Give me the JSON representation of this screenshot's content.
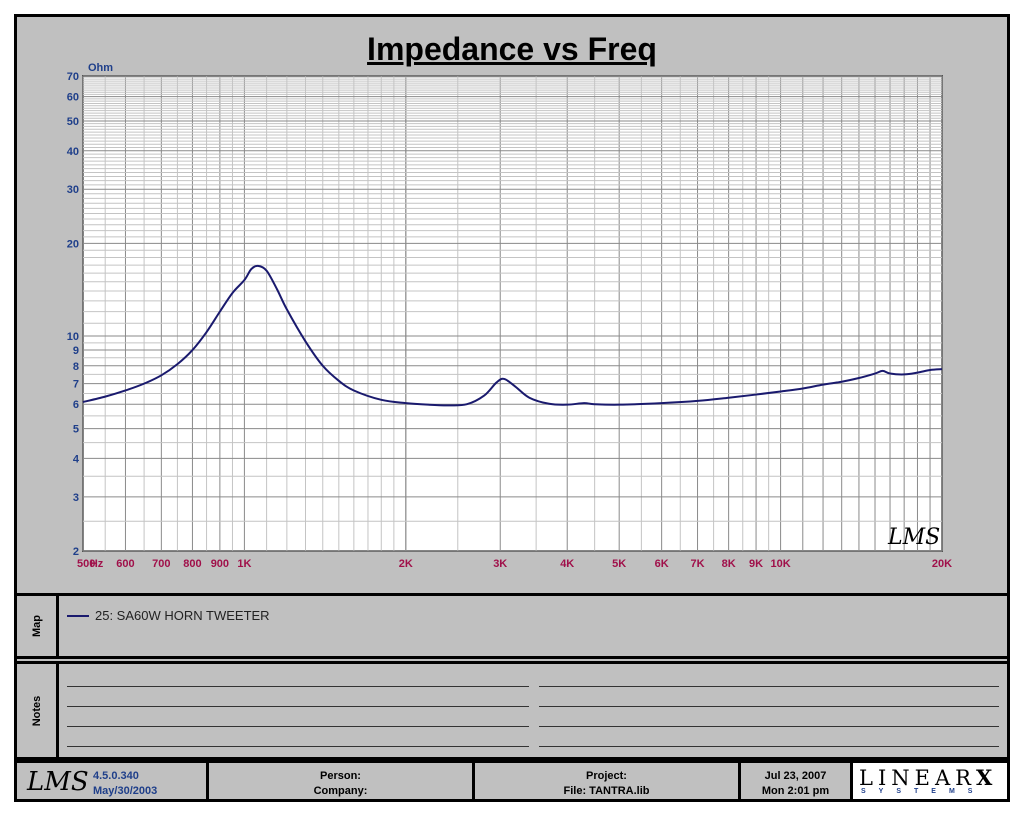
{
  "chart_data": {
    "type": "line",
    "title": "Impedance vs Freq",
    "ylabel": "Ohm",
    "xscale": "log",
    "yscale": "log",
    "xlim": [
      500,
      20000
    ],
    "ylim": [
      2,
      70
    ],
    "grid": true,
    "x_tick_labels": [
      {
        "value": 500,
        "label": "500"
      },
      {
        "value": 530,
        "label": "Hz"
      },
      {
        "value": 600,
        "label": "600"
      },
      {
        "value": 700,
        "label": "700"
      },
      {
        "value": 800,
        "label": "800"
      },
      {
        "value": 900,
        "label": "900"
      },
      {
        "value": 1000,
        "label": "1K"
      },
      {
        "value": 2000,
        "label": "2K"
      },
      {
        "value": 3000,
        "label": "3K"
      },
      {
        "value": 4000,
        "label": "4K"
      },
      {
        "value": 5000,
        "label": "5K"
      },
      {
        "value": 6000,
        "label": "6K"
      },
      {
        "value": 7000,
        "label": "7K"
      },
      {
        "value": 8000,
        "label": "8K"
      },
      {
        "value": 9000,
        "label": "9K"
      },
      {
        "value": 10000,
        "label": "10K"
      },
      {
        "value": 20000,
        "label": "20K"
      }
    ],
    "y_tick_labels": [
      "2",
      "3",
      "4",
      "5",
      "6",
      "7",
      "8",
      "9",
      "10",
      "20",
      "30",
      "40",
      "50",
      "60",
      "70"
    ],
    "series": [
      {
        "name": "25: SA60W HORN TWEETER",
        "color": "#1a1a6e",
        "points": [
          [
            500,
            6.1
          ],
          [
            550,
            6.35
          ],
          [
            600,
            6.65
          ],
          [
            650,
            7.0
          ],
          [
            700,
            7.45
          ],
          [
            750,
            8.1
          ],
          [
            800,
            9.0
          ],
          [
            850,
            10.3
          ],
          [
            900,
            12.0
          ],
          [
            950,
            13.8
          ],
          [
            1000,
            15.2
          ],
          [
            1030,
            16.5
          ],
          [
            1060,
            16.9
          ],
          [
            1100,
            16.3
          ],
          [
            1150,
            14.2
          ],
          [
            1200,
            12.2
          ],
          [
            1300,
            9.6
          ],
          [
            1400,
            8.0
          ],
          [
            1500,
            7.15
          ],
          [
            1600,
            6.65
          ],
          [
            1800,
            6.2
          ],
          [
            2000,
            6.05
          ],
          [
            2200,
            5.98
          ],
          [
            2400,
            5.95
          ],
          [
            2600,
            6.0
          ],
          [
            2800,
            6.4
          ],
          [
            2950,
            7.05
          ],
          [
            3050,
            7.25
          ],
          [
            3200,
            6.85
          ],
          [
            3400,
            6.3
          ],
          [
            3700,
            6.02
          ],
          [
            4000,
            5.98
          ],
          [
            4300,
            6.05
          ],
          [
            4500,
            6.0
          ],
          [
            5000,
            5.98
          ],
          [
            6000,
            6.05
          ],
          [
            7000,
            6.15
          ],
          [
            8000,
            6.3
          ],
          [
            9000,
            6.45
          ],
          [
            10000,
            6.6
          ],
          [
            11000,
            6.75
          ],
          [
            12000,
            6.95
          ],
          [
            13000,
            7.1
          ],
          [
            14000,
            7.3
          ],
          [
            15000,
            7.55
          ],
          [
            15500,
            7.7
          ],
          [
            16000,
            7.55
          ],
          [
            17000,
            7.5
          ],
          [
            18000,
            7.6
          ],
          [
            19000,
            7.75
          ],
          [
            20000,
            7.8
          ]
        ]
      }
    ],
    "watermark": "LMS"
  },
  "map": {
    "label": "Map",
    "legend_entry": "25: SA60W HORN TWEETER"
  },
  "notes": {
    "label": "Notes"
  },
  "footer": {
    "logo": "LMS",
    "version": "4.5.0.340",
    "version_date": "May/30/2003",
    "person_label": "Person:",
    "company_label": "Company:",
    "project_label": "Project:",
    "file_label": "File: TANTRA.lib",
    "date": "Jul 23, 2007",
    "time": "Mon  2:01 pm",
    "brand_main": "LINEAR",
    "brand_x": "X",
    "brand_sub": "SYSTEMS"
  }
}
